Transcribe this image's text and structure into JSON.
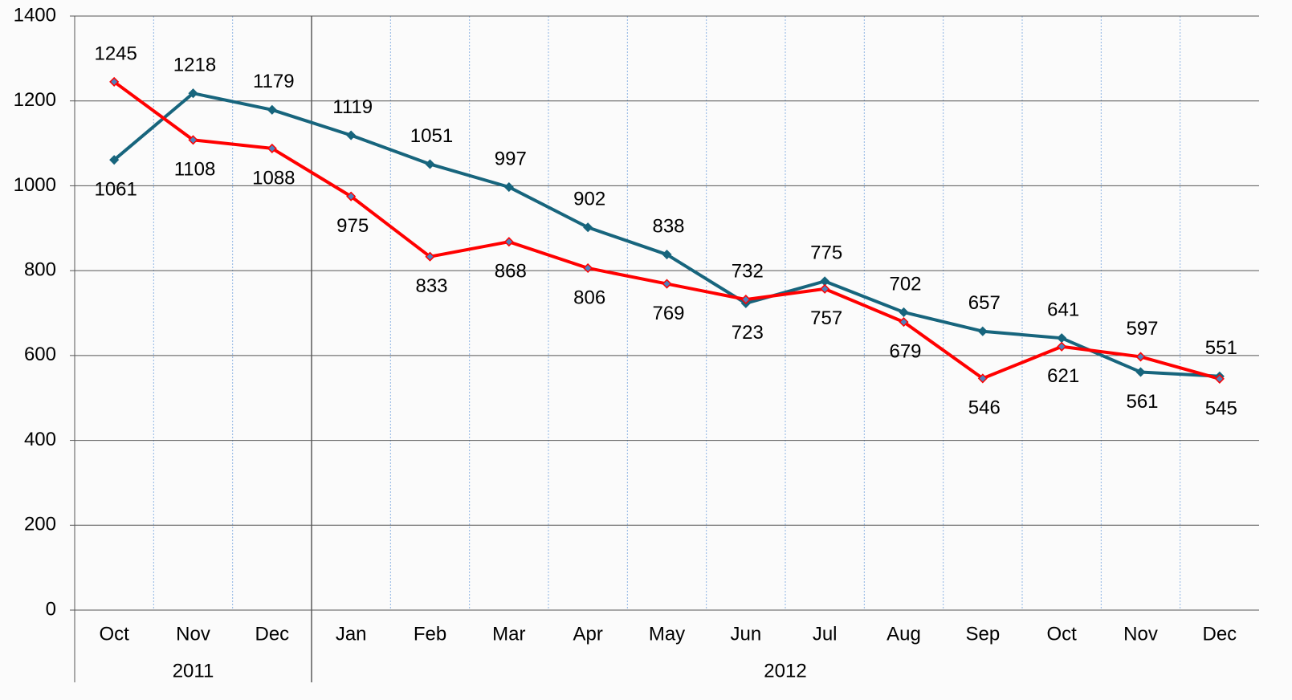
{
  "chart_data": {
    "type": "line",
    "categories": [
      "Oct",
      "Nov",
      "Dec",
      "Jan",
      "Feb",
      "Mar",
      "Apr",
      "May",
      "Jun",
      "Jul",
      "Aug",
      "Sep",
      "Oct",
      "Nov",
      "Dec"
    ],
    "x_groups": [
      {
        "label": "2011",
        "count": 3
      },
      {
        "label": "2012",
        "count": 12
      }
    ],
    "series": [
      {
        "color": "#17657d",
        "values": [
          1061,
          1218,
          1179,
          1119,
          1051,
          997,
          902,
          838,
          723,
          775,
          702,
          657,
          641,
          561,
          551
        ]
      },
      {
        "color": "#ff0000",
        "values": [
          1245,
          1108,
          1088,
          975,
          833,
          868,
          806,
          769,
          732,
          757,
          679,
          546,
          621,
          597,
          545
        ]
      }
    ],
    "ylim": [
      0,
      1400
    ],
    "yticks": [
      0,
      200,
      400,
      600,
      800,
      1000,
      1200,
      1400
    ],
    "grid": true
  }
}
